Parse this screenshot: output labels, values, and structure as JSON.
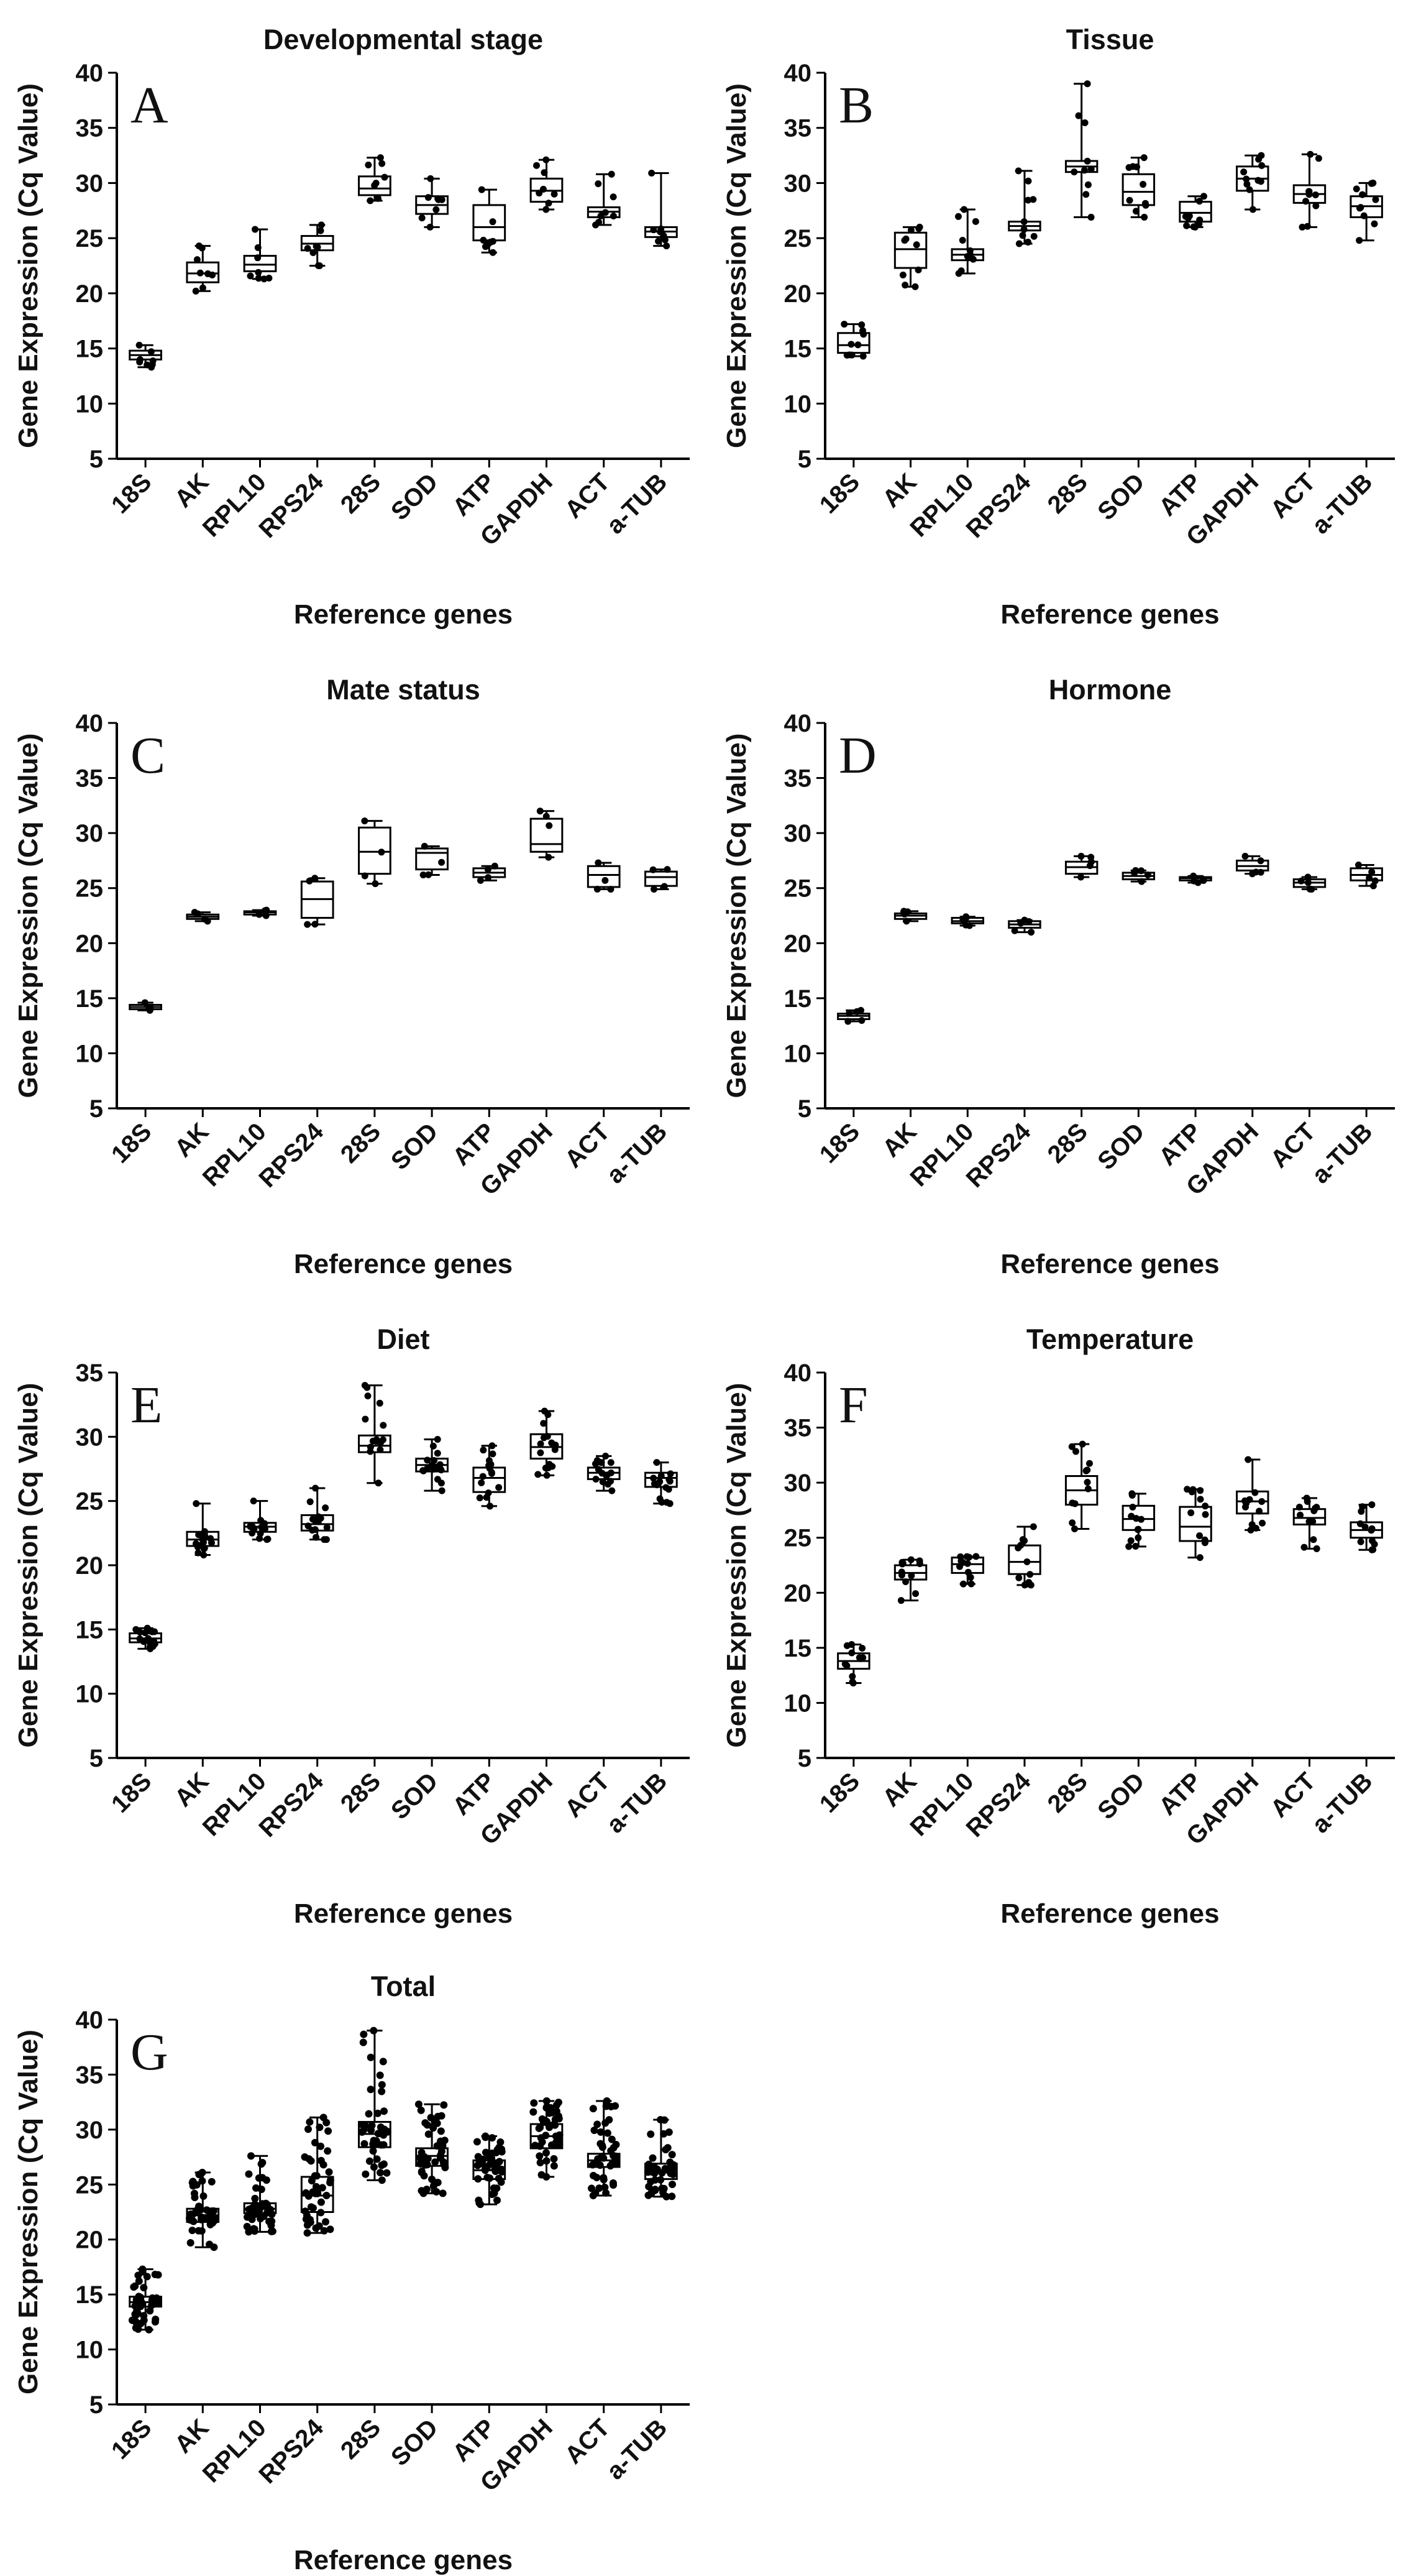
{
  "chart_data": [
    {
      "type": "boxplot",
      "panel_letter": "A",
      "title": "Developmental stage",
      "xlabel": "Reference genes",
      "ylabel": "Gene Expression (Cq Value)",
      "ylim": [
        5,
        40
      ],
      "yticks": [
        5,
        10,
        15,
        20,
        25,
        30,
        35,
        40
      ],
      "categories": [
        "18S",
        "AK",
        "RPL10",
        "RPS24",
        "28S",
        "SOD",
        "ATP",
        "GAPDH",
        "ACT",
        "a-TUB"
      ],
      "n_points": 8,
      "boxes": [
        {
          "min": 13.3,
          "q1": 14.0,
          "median": 14.4,
          "q3": 14.8,
          "max": 15.3
        },
        {
          "min": 20.2,
          "q1": 21.0,
          "median": 21.8,
          "q3": 22.8,
          "max": 24.3
        },
        {
          "min": 21.3,
          "q1": 22.0,
          "median": 22.6,
          "q3": 23.4,
          "max": 25.8
        },
        {
          "min": 22.5,
          "q1": 23.9,
          "median": 24.5,
          "q3": 25.2,
          "max": 26.2
        },
        {
          "min": 28.4,
          "q1": 28.9,
          "median": 29.5,
          "q3": 30.6,
          "max": 32.3
        },
        {
          "min": 26.0,
          "q1": 27.2,
          "median": 28.0,
          "q3": 28.8,
          "max": 30.4
        },
        {
          "min": 23.7,
          "q1": 24.8,
          "median": 26.0,
          "q3": 28.0,
          "max": 29.4
        },
        {
          "min": 27.6,
          "q1": 28.3,
          "median": 29.3,
          "q3": 30.4,
          "max": 32.1
        },
        {
          "min": 26.2,
          "q1": 26.9,
          "median": 27.4,
          "q3": 27.8,
          "max": 30.8
        },
        {
          "min": 24.3,
          "q1": 25.1,
          "median": 25.6,
          "q3": 26.0,
          "max": 30.9
        }
      ]
    },
    {
      "type": "boxplot",
      "panel_letter": "B",
      "title": "Tissue",
      "xlabel": "Reference genes",
      "ylabel": "Gene Expression (Cq Value)",
      "ylim": [
        5,
        40
      ],
      "yticks": [
        5,
        10,
        15,
        20,
        25,
        30,
        35,
        40
      ],
      "categories": [
        "18S",
        "AK",
        "RPL10",
        "RPS24",
        "28S",
        "SOD",
        "ATP",
        "GAPDH",
        "ACT",
        "a-TUB"
      ],
      "n_points": 10,
      "boxes": [
        {
          "min": 14.3,
          "q1": 14.6,
          "median": 15.3,
          "q3": 16.4,
          "max": 17.2
        },
        {
          "min": 20.6,
          "q1": 22.3,
          "median": 24.0,
          "q3": 25.5,
          "max": 26.0
        },
        {
          "min": 21.8,
          "q1": 23.0,
          "median": 23.5,
          "q3": 24.0,
          "max": 27.6
        },
        {
          "min": 24.5,
          "q1": 25.7,
          "median": 26.1,
          "q3": 26.5,
          "max": 31.1
        },
        {
          "min": 26.9,
          "q1": 31.0,
          "median": 31.5,
          "q3": 32.0,
          "max": 39.0
        },
        {
          "min": 26.9,
          "q1": 28.0,
          "median": 29.2,
          "q3": 30.8,
          "max": 32.3
        },
        {
          "min": 26.0,
          "q1": 26.5,
          "median": 27.3,
          "q3": 28.3,
          "max": 28.8
        },
        {
          "min": 27.6,
          "q1": 29.3,
          "median": 30.4,
          "q3": 31.5,
          "max": 32.5
        },
        {
          "min": 26.0,
          "q1": 28.2,
          "median": 29.0,
          "q3": 29.8,
          "max": 32.6
        },
        {
          "min": 24.8,
          "q1": 26.9,
          "median": 27.9,
          "q3": 28.8,
          "max": 30.0
        }
      ]
    },
    {
      "type": "boxplot",
      "panel_letter": "C",
      "title": "Mate status",
      "xlabel": "Reference genes",
      "ylabel": "Gene Expression (Cq Value)",
      "ylim": [
        5,
        40
      ],
      "yticks": [
        5,
        10,
        15,
        20,
        25,
        30,
        35,
        40
      ],
      "categories": [
        "18S",
        "AK",
        "RPL10",
        "RPS24",
        "28S",
        "SOD",
        "ATP",
        "GAPDH",
        "ACT",
        "a-TUB"
      ],
      "n_points": 4,
      "boxes": [
        {
          "min": 13.9,
          "q1": 14.0,
          "median": 14.2,
          "q3": 14.4,
          "max": 14.6
        },
        {
          "min": 22.0,
          "q1": 22.2,
          "median": 22.4,
          "q3": 22.6,
          "max": 22.8
        },
        {
          "min": 22.5,
          "q1": 22.6,
          "median": 22.8,
          "q3": 22.9,
          "max": 23.0
        },
        {
          "min": 21.7,
          "q1": 22.3,
          "median": 24.0,
          "q3": 25.6,
          "max": 25.9
        },
        {
          "min": 25.4,
          "q1": 26.3,
          "median": 28.3,
          "q3": 30.5,
          "max": 31.1
        },
        {
          "min": 26.2,
          "q1": 26.7,
          "median": 28.2,
          "q3": 28.6,
          "max": 28.8
        },
        {
          "min": 25.7,
          "q1": 26.0,
          "median": 26.4,
          "q3": 26.8,
          "max": 27.0
        },
        {
          "min": 27.8,
          "q1": 28.3,
          "median": 29.0,
          "q3": 31.3,
          "max": 32.0
        },
        {
          "min": 24.9,
          "q1": 25.1,
          "median": 26.2,
          "q3": 27.0,
          "max": 27.3
        },
        {
          "min": 24.9,
          "q1": 25.2,
          "median": 26.0,
          "q3": 26.5,
          "max": 26.7
        }
      ]
    },
    {
      "type": "boxplot",
      "panel_letter": "D",
      "title": "Hormone",
      "xlabel": "Reference genes",
      "ylabel": "Gene Expression (Cq Value)",
      "ylim": [
        5,
        40
      ],
      "yticks": [
        5,
        10,
        15,
        20,
        25,
        30,
        35,
        40
      ],
      "categories": [
        "18S",
        "AK",
        "RPL10",
        "RPS24",
        "28S",
        "SOD",
        "ATP",
        "GAPDH",
        "ACT",
        "a-TUB"
      ],
      "n_points": 5,
      "boxes": [
        {
          "min": 12.9,
          "q1": 13.1,
          "median": 13.4,
          "q3": 13.6,
          "max": 13.9
        },
        {
          "min": 22.0,
          "q1": 22.2,
          "median": 22.5,
          "q3": 22.7,
          "max": 22.9
        },
        {
          "min": 21.6,
          "q1": 21.8,
          "median": 22.0,
          "q3": 22.3,
          "max": 22.4
        },
        {
          "min": 21.0,
          "q1": 21.4,
          "median": 21.7,
          "q3": 22.0,
          "max": 22.1
        },
        {
          "min": 26.0,
          "q1": 26.3,
          "median": 26.9,
          "q3": 27.4,
          "max": 27.9
        },
        {
          "min": 25.6,
          "q1": 25.8,
          "median": 26.1,
          "q3": 26.4,
          "max": 26.6
        },
        {
          "min": 25.5,
          "q1": 25.7,
          "median": 25.9,
          "q3": 26.0,
          "max": 26.1
        },
        {
          "min": 26.3,
          "q1": 26.6,
          "median": 27.0,
          "q3": 27.5,
          "max": 27.9
        },
        {
          "min": 24.9,
          "q1": 25.1,
          "median": 25.5,
          "q3": 25.8,
          "max": 26.0
        },
        {
          "min": 25.2,
          "q1": 25.7,
          "median": 26.2,
          "q3": 26.8,
          "max": 27.1
        }
      ]
    },
    {
      "type": "boxplot",
      "panel_letter": "E",
      "title": "Diet",
      "xlabel": "Reference genes",
      "ylabel": "Gene Expression (Cq Value)",
      "ylim": [
        5,
        35
      ],
      "yticks": [
        5,
        10,
        15,
        20,
        25,
        30,
        35
      ],
      "categories": [
        "18S",
        "AK",
        "RPL10",
        "RPS24",
        "28S",
        "SOD",
        "ATP",
        "GAPDH",
        "ACT",
        "a-TUB"
      ],
      "n_points": 16,
      "boxes": [
        {
          "min": 13.5,
          "q1": 14.0,
          "median": 14.3,
          "q3": 14.7,
          "max": 15.1
        },
        {
          "min": 20.8,
          "q1": 21.5,
          "median": 22.0,
          "q3": 22.6,
          "max": 24.8
        },
        {
          "min": 22.0,
          "q1": 22.6,
          "median": 23.0,
          "q3": 23.3,
          "max": 25.0
        },
        {
          "min": 22.0,
          "q1": 22.7,
          "median": 23.2,
          "q3": 23.9,
          "max": 26.0
        },
        {
          "min": 26.4,
          "q1": 28.8,
          "median": 29.3,
          "q3": 30.1,
          "max": 34.0
        },
        {
          "min": 25.8,
          "q1": 27.3,
          "median": 27.8,
          "q3": 28.3,
          "max": 29.8
        },
        {
          "min": 24.6,
          "q1": 25.7,
          "median": 26.8,
          "q3": 27.6,
          "max": 29.3
        },
        {
          "min": 27.0,
          "q1": 28.3,
          "median": 29.2,
          "q3": 30.2,
          "max": 32.0
        },
        {
          "min": 25.8,
          "q1": 26.7,
          "median": 27.2,
          "q3": 27.6,
          "max": 28.5
        },
        {
          "min": 24.8,
          "q1": 26.1,
          "median": 26.8,
          "q3": 27.2,
          "max": 28.0
        }
      ]
    },
    {
      "type": "boxplot",
      "panel_letter": "F",
      "title": "Temperature",
      "xlabel": "Reference genes",
      "ylabel": "Gene Expression (Cq Value)",
      "ylim": [
        5,
        40
      ],
      "yticks": [
        5,
        10,
        15,
        20,
        25,
        30,
        35,
        40
      ],
      "categories": [
        "18S",
        "AK",
        "RPL10",
        "RPS24",
        "28S",
        "SOD",
        "ATP",
        "GAPDH",
        "ACT",
        "a-TUB"
      ],
      "n_points": 12,
      "boxes": [
        {
          "min": 11.8,
          "q1": 13.1,
          "median": 13.8,
          "q3": 14.5,
          "max": 15.3
        },
        {
          "min": 19.3,
          "q1": 21.2,
          "median": 21.8,
          "q3": 22.5,
          "max": 23.0
        },
        {
          "min": 20.8,
          "q1": 21.8,
          "median": 22.6,
          "q3": 23.2,
          "max": 23.3
        },
        {
          "min": 20.7,
          "q1": 21.7,
          "median": 22.8,
          "q3": 24.3,
          "max": 26.0
        },
        {
          "min": 25.8,
          "q1": 28.0,
          "median": 29.3,
          "q3": 30.6,
          "max": 33.5
        },
        {
          "min": 24.2,
          "q1": 25.7,
          "median": 26.7,
          "q3": 27.9,
          "max": 29.0
        },
        {
          "min": 23.2,
          "q1": 24.7,
          "median": 26.0,
          "q3": 27.8,
          "max": 29.4
        },
        {
          "min": 25.7,
          "q1": 27.2,
          "median": 28.3,
          "q3": 29.2,
          "max": 32.1
        },
        {
          "min": 24.0,
          "q1": 26.2,
          "median": 26.8,
          "q3": 27.6,
          "max": 28.6
        },
        {
          "min": 23.9,
          "q1": 25.0,
          "median": 25.7,
          "q3": 26.4,
          "max": 28.0
        }
      ]
    },
    {
      "type": "boxplot",
      "panel_letter": "G",
      "title": "Total",
      "xlabel": "Reference genes",
      "ylabel": "Gene Expression (Cq Value)",
      "ylim": [
        5,
        40
      ],
      "yticks": [
        5,
        10,
        15,
        20,
        25,
        30,
        35,
        40
      ],
      "categories": [
        "18S",
        "AK",
        "RPL10",
        "RPS24",
        "28S",
        "SOD",
        "ATP",
        "GAPDH",
        "ACT",
        "a-TUB"
      ],
      "n_points": 45,
      "boxes": [
        {
          "min": 11.8,
          "q1": 13.9,
          "median": 14.3,
          "q3": 14.8,
          "max": 17.3
        },
        {
          "min": 19.3,
          "q1": 21.6,
          "median": 22.2,
          "q3": 22.8,
          "max": 26.1
        },
        {
          "min": 20.7,
          "q1": 22.4,
          "median": 22.8,
          "q3": 23.3,
          "max": 27.6
        },
        {
          "min": 20.6,
          "q1": 22.5,
          "median": 24.0,
          "q3": 25.7,
          "max": 31.1
        },
        {
          "min": 25.4,
          "q1": 28.4,
          "median": 29.6,
          "q3": 30.7,
          "max": 39.0
        },
        {
          "min": 24.2,
          "q1": 26.7,
          "median": 27.6,
          "q3": 28.3,
          "max": 32.3
        },
        {
          "min": 23.2,
          "q1": 25.5,
          "median": 26.3,
          "q3": 27.2,
          "max": 29.4
        },
        {
          "min": 25.7,
          "q1": 28.3,
          "median": 29.4,
          "q3": 30.5,
          "max": 32.6
        },
        {
          "min": 24.0,
          "q1": 26.6,
          "median": 27.2,
          "q3": 27.8,
          "max": 32.6
        },
        {
          "min": 23.9,
          "q1": 25.5,
          "median": 26.1,
          "q3": 26.9,
          "max": 30.9
        }
      ]
    }
  ]
}
